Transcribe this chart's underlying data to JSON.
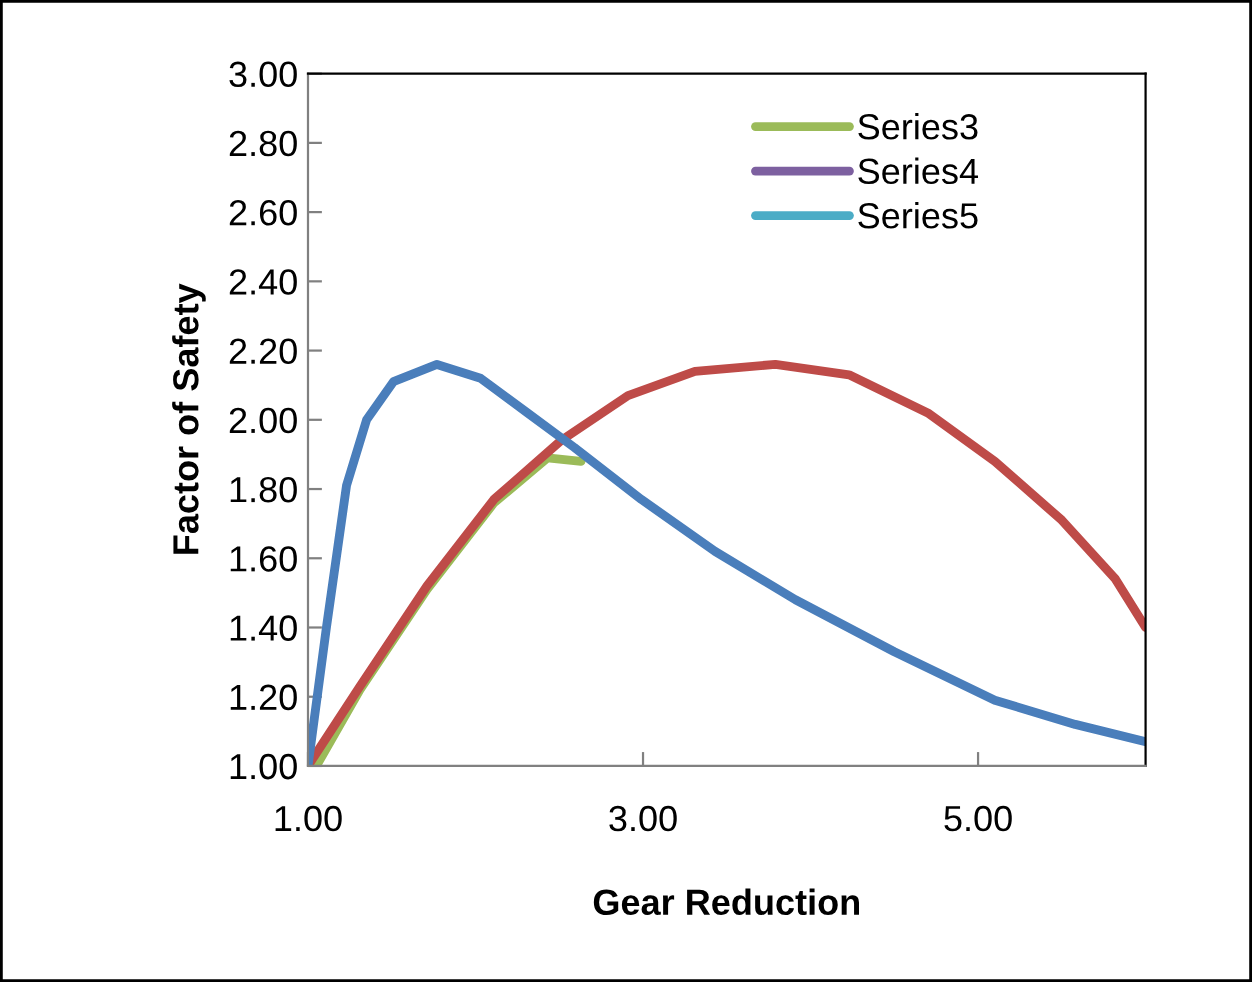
{
  "chart_data": {
    "type": "line",
    "xlabel": "Gear Reduction",
    "ylabel": "Factor of Safety",
    "xlim": [
      1,
      6
    ],
    "xticks": [
      {
        "value": 1,
        "label": "1.00"
      },
      {
        "value": 3,
        "label": "3.00"
      },
      {
        "value": 5,
        "label": "5.00"
      }
    ],
    "ylim": [
      1,
      3
    ],
    "yticks": [
      {
        "value": 1,
        "label": "1.00"
      },
      {
        "value": 1.2,
        "label": "1.20"
      },
      {
        "value": 1.4,
        "label": "1.40"
      },
      {
        "value": 1.6,
        "label": "1.60"
      },
      {
        "value": 1.8,
        "label": "1.80"
      },
      {
        "value": 2,
        "label": "2.00"
      },
      {
        "value": 2.2,
        "label": "2.20"
      },
      {
        "value": 2.4,
        "label": "2.40"
      },
      {
        "value": 2.6,
        "label": "2.60"
      },
      {
        "value": 2.8,
        "label": "2.80"
      },
      {
        "value": 3,
        "label": "3.00"
      }
    ],
    "grid": false,
    "legend": "top right",
    "marker": "none",
    "line_style": "solid",
    "series": [
      {
        "name": "Series3",
        "color": "#9bbb59",
        "x": [
          1.05,
          1.31,
          1.71,
          2.11,
          2.43,
          2.63
        ],
        "values": [
          1.0,
          1.22,
          1.51,
          1.76,
          1.89,
          1.88
        ]
      },
      {
        "name": "Series4",
        "color": "#7d60a0"
      },
      {
        "name": "Series5",
        "color": "#4bacc6"
      },
      {
        "color": "#be4b48",
        "x": [
          1.0,
          1.31,
          1.71,
          2.11,
          2.51,
          2.91,
          3.31,
          3.79,
          4.23,
          4.7,
          5.1,
          5.5,
          5.82,
          6.0
        ],
        "values": [
          1.0,
          1.23,
          1.52,
          1.77,
          1.94,
          2.07,
          2.14,
          2.16,
          2.13,
          2.02,
          1.88,
          1.71,
          1.54,
          1.4
        ]
      },
      {
        "color": "#4a7ebb",
        "x": [
          1.0,
          1.11,
          1.23,
          1.35,
          1.51,
          1.77,
          2.03,
          2.31,
          2.59,
          2.99,
          3.43,
          3.91,
          4.5,
          5.1,
          5.58,
          6.0
        ],
        "values": [
          1.0,
          1.4,
          1.81,
          2.0,
          2.11,
          2.16,
          2.12,
          2.02,
          1.92,
          1.77,
          1.62,
          1.48,
          1.33,
          1.19,
          1.12,
          1.07
        ]
      }
    ]
  }
}
